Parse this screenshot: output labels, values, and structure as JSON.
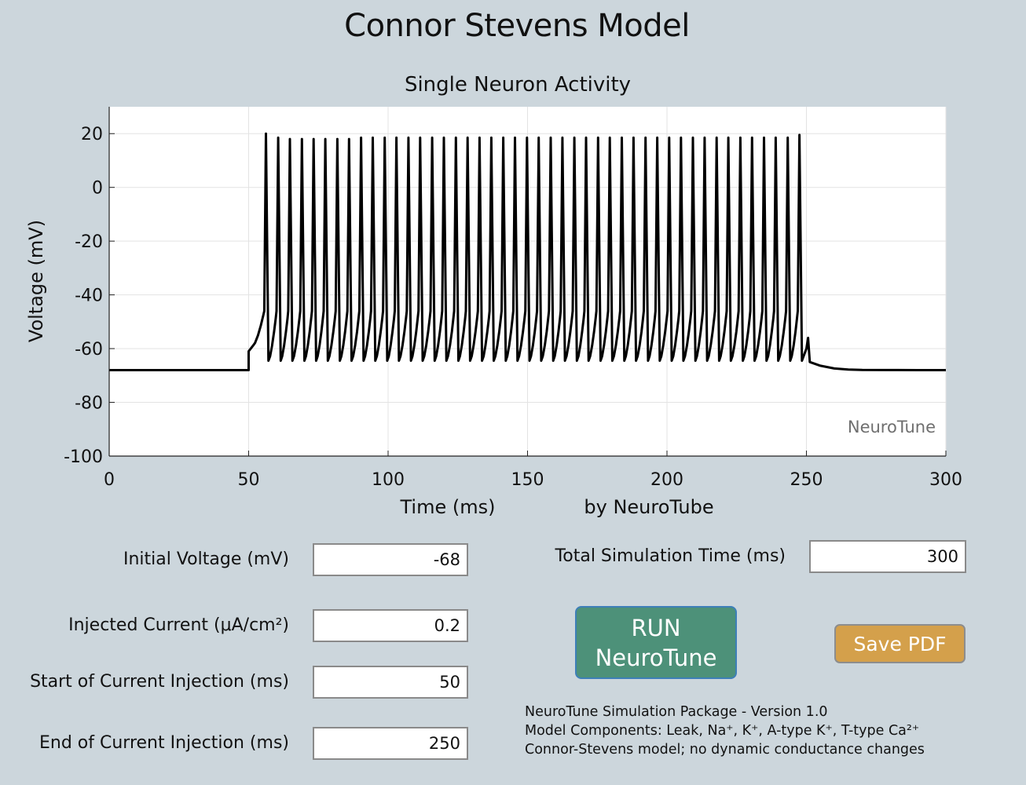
{
  "app": {
    "title": "Connor Stevens Model",
    "watermark": "NeuroTune",
    "credit": "by NeuroTube"
  },
  "chart_data": {
    "type": "line",
    "title": "Single Neuron Activity",
    "xlabel": "Time (ms)",
    "ylabel": "Voltage (mV)",
    "xlim": [
      0,
      300
    ],
    "ylim": [
      -100,
      30
    ],
    "xticks": [
      0,
      50,
      100,
      150,
      200,
      250,
      300
    ],
    "yticks": [
      20,
      0,
      -20,
      -40,
      -60,
      -80,
      -100
    ],
    "grid": true,
    "line_color": "#000000",
    "series": [
      {
        "resting_potential": -68,
        "stim_start": 50,
        "stim_end": 250,
        "spike_times": [
          56.2,
          60.6,
          64.8,
          69.1,
          73.3,
          77.5,
          81.8,
          86.0,
          90.3,
          94.5,
          98.8,
          103.0,
          107.3,
          111.5,
          115.8,
          120.0,
          124.3,
          128.5,
          132.8,
          137.0,
          141.3,
          145.5,
          149.8,
          154.0,
          158.3,
          162.5,
          166.8,
          171.0,
          175.3,
          179.5,
          183.8,
          188.0,
          192.3,
          196.5,
          200.8,
          205.0,
          209.3,
          213.5,
          217.8,
          222.0,
          226.3,
          230.5,
          234.8,
          239.0,
          243.3,
          247.5
        ],
        "spike_peaks": [
          20,
          18.5,
          18,
          18,
          18,
          18,
          18,
          18,
          18.5,
          18.5,
          18.5,
          18.5,
          18.5,
          18.5,
          18.5,
          18.5,
          18.5,
          18.5,
          18.5,
          18.5,
          18.5,
          18.5,
          18.5,
          18.5,
          18.5,
          18.5,
          18.5,
          18.5,
          18.5,
          18.5,
          18.5,
          18.5,
          18.5,
          18.5,
          18.5,
          18.5,
          18.5,
          18.5,
          18.5,
          18.5,
          18.5,
          18.5,
          18.5,
          18.5,
          18.5,
          19.5
        ],
        "trough": -64.5,
        "threshold": -46
      }
    ]
  },
  "inputs": {
    "initial_voltage": {
      "label": "Initial Voltage (mV)",
      "value": "-68"
    },
    "injected_current": {
      "label": "Injected Current (μA/cm²)",
      "value": "0.2"
    },
    "start_injection": {
      "label": "Start of Current Injection (ms)",
      "value": "50"
    },
    "end_injection": {
      "label": "End of Current Injection (ms)",
      "value": "250"
    },
    "total_time": {
      "label": "Total Simulation Time (ms)",
      "value": "300"
    }
  },
  "buttons": {
    "run_line1": "RUN",
    "run_line2": "NeuroTune",
    "save_pdf": "Save PDF"
  },
  "info": {
    "line1": "NeuroTune Simulation Package - Version 1.0",
    "line2": "Model Components: Leak, Na⁺, K⁺, A-type K⁺, T-type Ca²⁺",
    "line3": "Connor-Stevens model; no dynamic conductance changes"
  },
  "colors": {
    "background": "#ccd6dc",
    "run_button": "#4d9179",
    "save_button": "#d4a04b"
  }
}
